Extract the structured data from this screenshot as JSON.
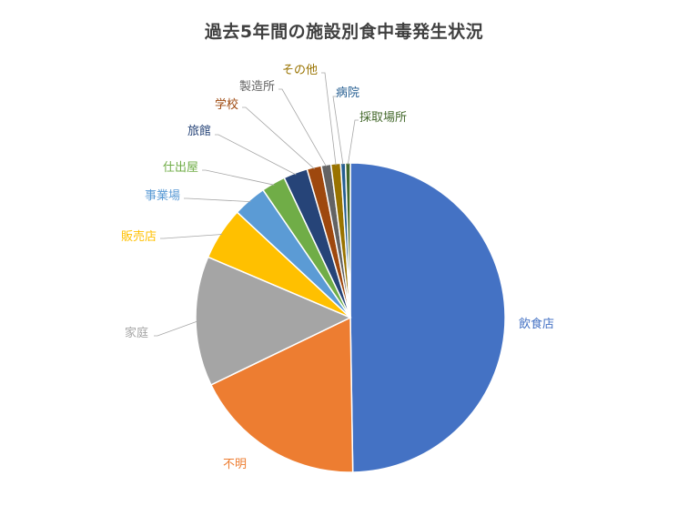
{
  "chart_data": {
    "type": "pie",
    "title": "過去5年間の施設別食中毒発生状況",
    "categories": [
      "飲食店",
      "不明",
      "家庭",
      "販売店",
      "事業場",
      "仕出屋",
      "旅館",
      "学校",
      "製造所",
      "その他",
      "病院",
      "採取場所"
    ],
    "values": [
      49.5,
      18.0,
      13.5,
      5.5,
      3.5,
      2.5,
      2.5,
      1.5,
      1.0,
      1.0,
      0.5,
      0.5
    ],
    "unit": "%",
    "colors": [
      "#4472C4",
      "#ED7D31",
      "#A5A5A5",
      "#FFC000",
      "#5B9BD5",
      "#70AD47",
      "#264478",
      "#9E480E",
      "#636363",
      "#997300",
      "#255E91",
      "#43682B"
    ],
    "start_angle_deg": 0,
    "direction": "clockwise",
    "legend": "none",
    "data_labels": "category name, outside with leader lines"
  }
}
